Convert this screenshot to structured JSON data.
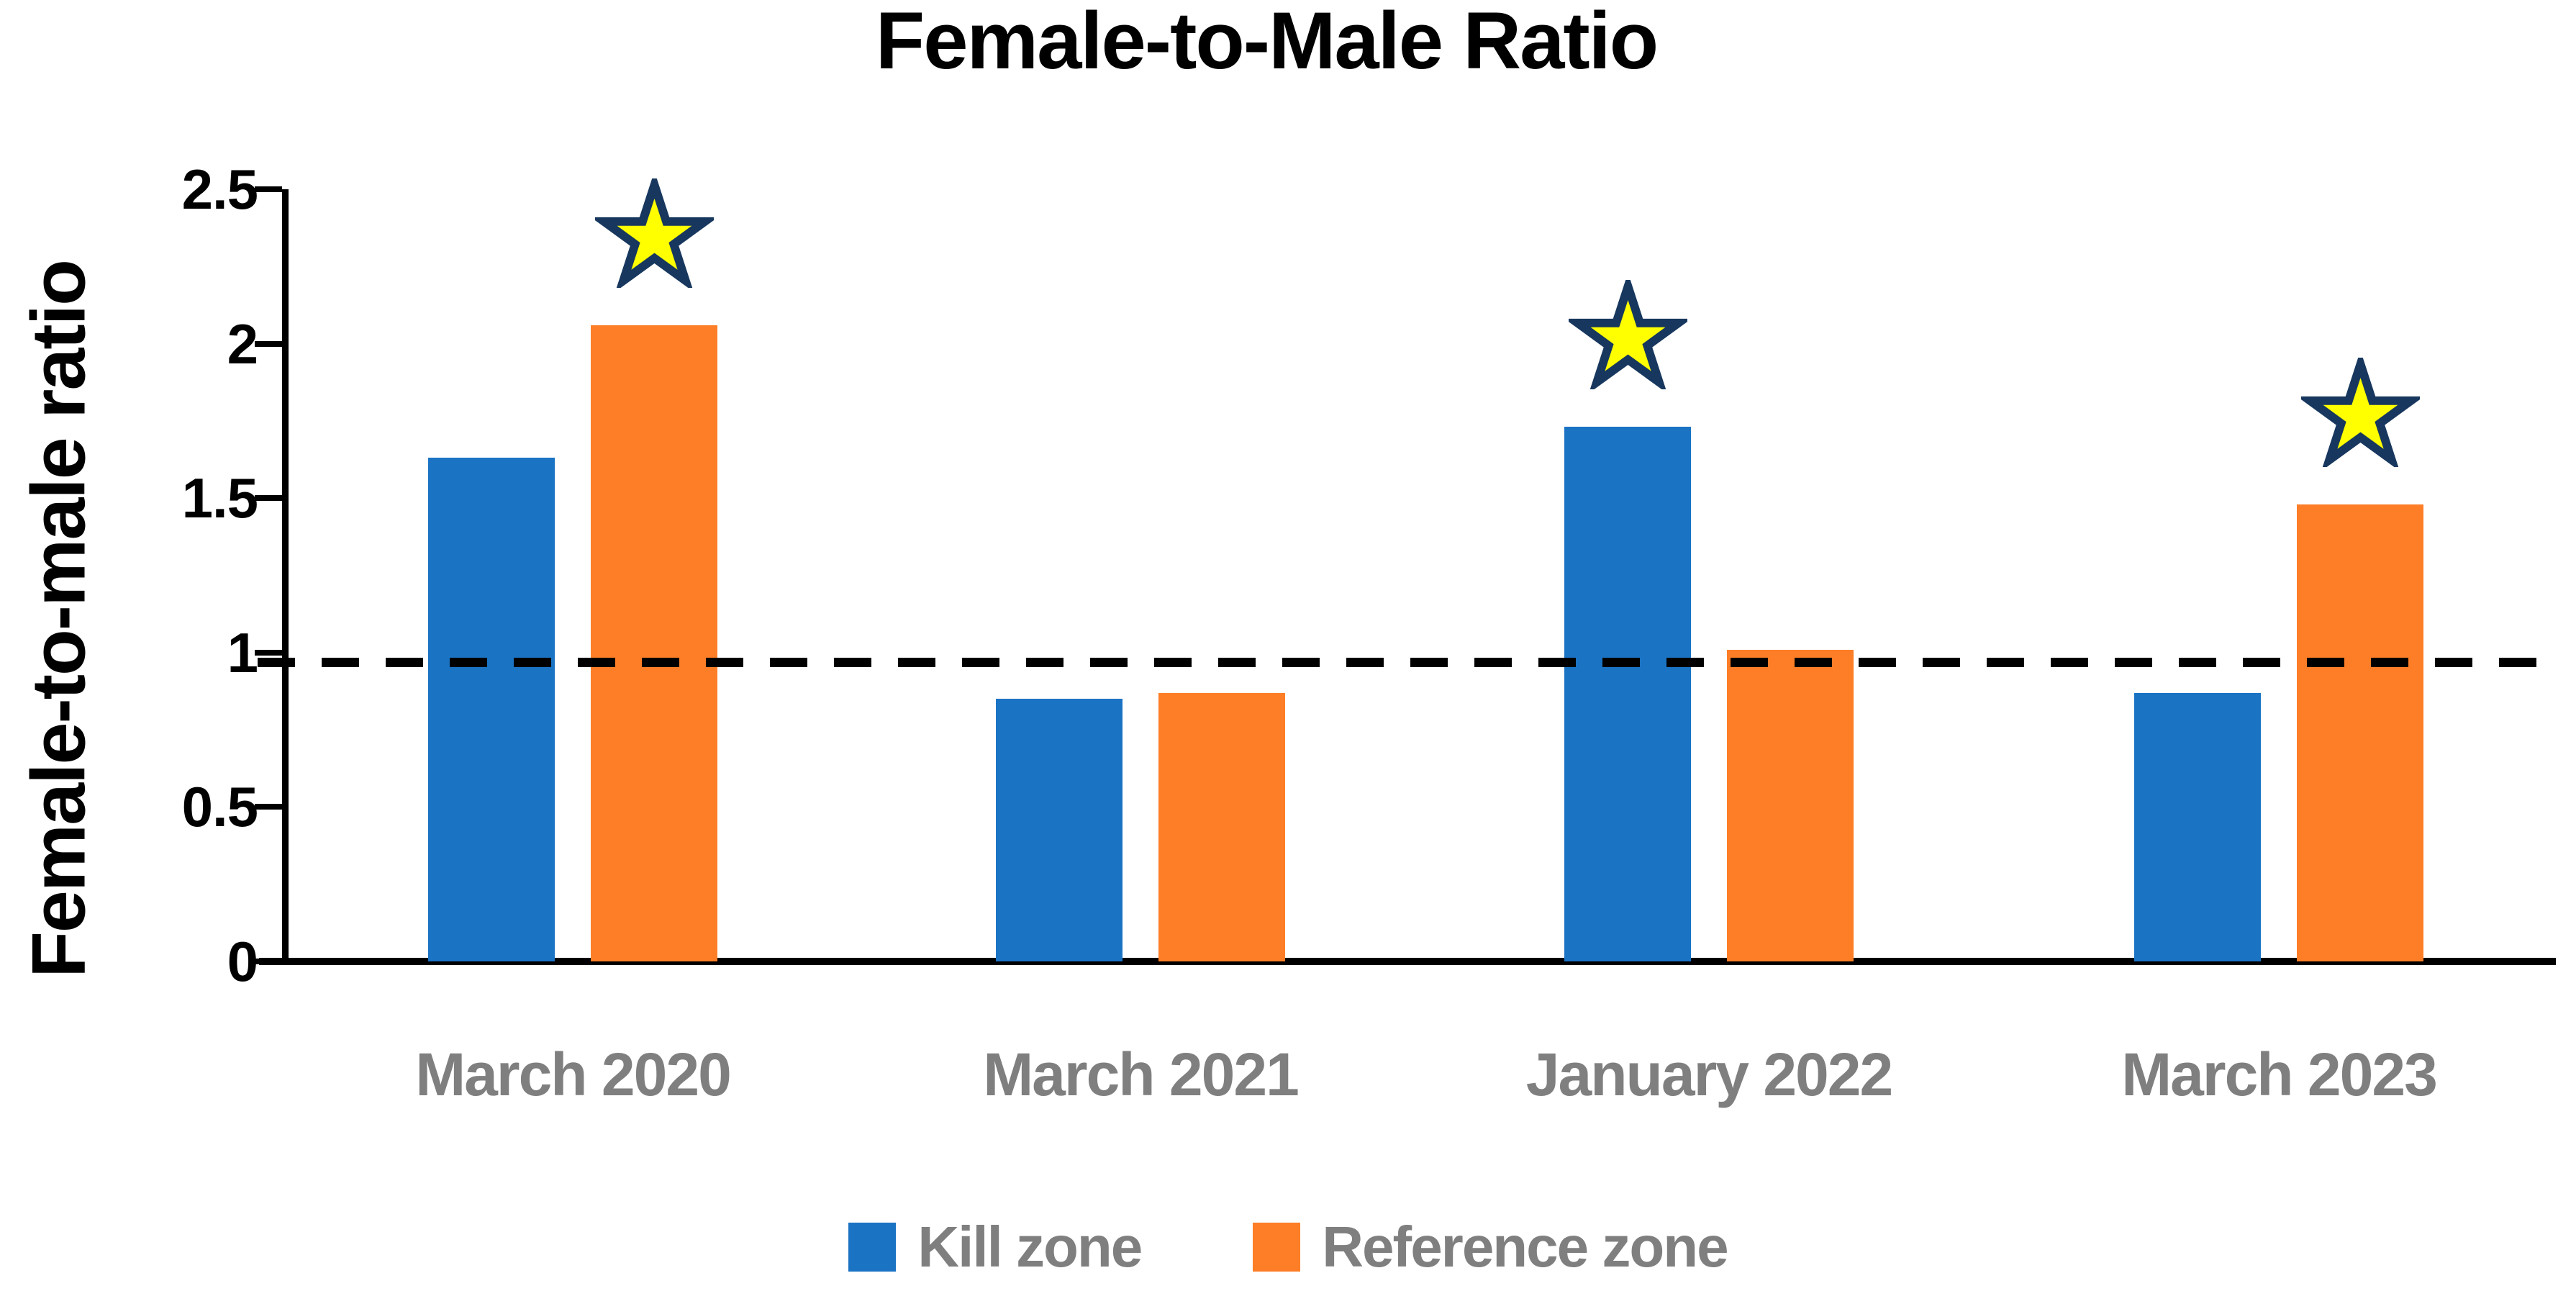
{
  "title": "Female-to-Male Ratio",
  "y_axis": {
    "label": "Female-to-male ratio",
    "tick_labels": [
      "0",
      "0.5",
      "1",
      "1.5",
      "2",
      "2.5"
    ]
  },
  "legend": {
    "items": [
      {
        "label": "Kill zone",
        "color": "#1B73C4"
      },
      {
        "label": "Reference zone",
        "color": "#FD7E27"
      }
    ],
    "position": "bottom"
  },
  "colors": {
    "kill_zone_blue": "#1B73C4",
    "reference_zone_orange": "#FD7E27",
    "star_fill": "#FFFF00",
    "star_outline": "#17375E",
    "category_text_gray": "#7F7F7F",
    "axis_black": "#000000"
  },
  "chart_data": {
    "type": "bar",
    "title": "Female-to-Male Ratio",
    "xlabel": "",
    "ylabel": "Female-to-male ratio",
    "categories": [
      "March 2020",
      "March 2021",
      "January 2022",
      "March 2023"
    ],
    "series": [
      {
        "name": "Kill zone",
        "color": "#1B73C4",
        "values": [
          1.63,
          0.85,
          1.73,
          0.87
        ]
      },
      {
        "name": "Reference zone",
        "color": "#FD7E27",
        "values": [
          2.06,
          0.87,
          1.01,
          1.48
        ]
      }
    ],
    "ylim": [
      0,
      2.5
    ],
    "ytick_step": 0.5,
    "grid": false,
    "legend_position": "bottom",
    "reference_line": {
      "value": 0.97,
      "style": "dashed",
      "color": "#000000"
    },
    "star_annotations": [
      {
        "category": "March 2020",
        "series": "Reference zone"
      },
      {
        "category": "January 2022",
        "series": "Kill zone"
      },
      {
        "category": "March 2023",
        "series": "Reference zone"
      }
    ]
  }
}
